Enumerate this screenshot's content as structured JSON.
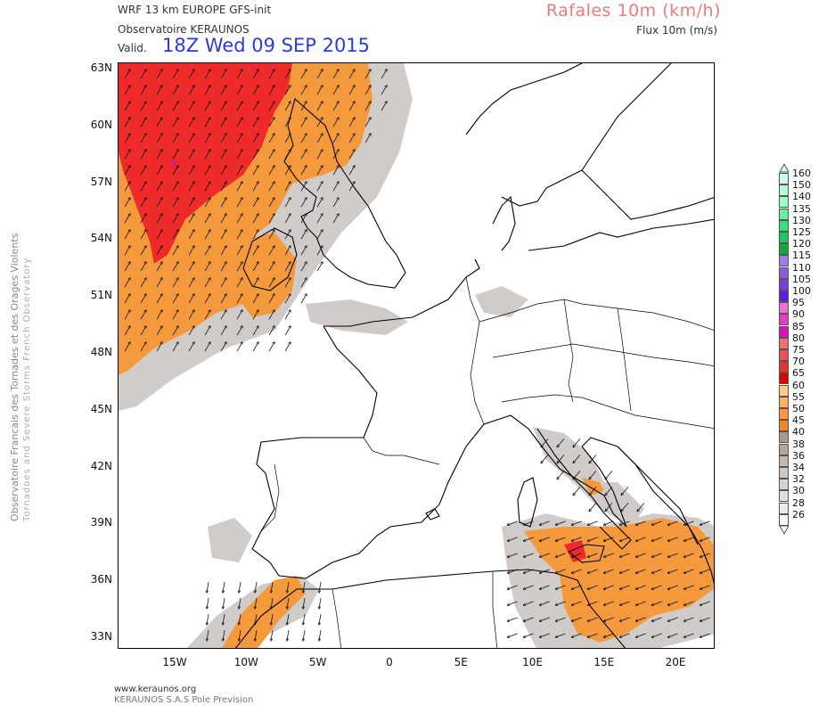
{
  "header": {
    "model": "WRF 13 km EUROPE  GFS-init",
    "org": "Observatoire KERAUNOS",
    "valid_label": "Valid.",
    "valid_time": "18Z Wed 09 SEP 2015",
    "param_title": "Rafales 10m (km/h)",
    "param_sub": "Flux 10m (m/s)"
  },
  "side_text": {
    "main": "Observatoire Francais des Tornades et des Orages Violents",
    "sub": "Tornadoes and Severe Storms French Observatory"
  },
  "footer": {
    "line1": "www.keraunos.org",
    "line2": "KERAUNOS S.A.S Pole Prevision"
  },
  "axes": {
    "lat_labels": [
      "63N",
      "60N",
      "57N",
      "54N",
      "51N",
      "48N",
      "45N",
      "42N",
      "39N",
      "36N",
      "33N"
    ],
    "lon_labels": [
      "15W",
      "10W",
      "5W",
      "0",
      "5E",
      "10E",
      "15E",
      "20E"
    ]
  },
  "legend": {
    "levels": [
      {
        "label": "160",
        "color": "#ccffe6"
      },
      {
        "label": "150",
        "color": "#b3ffd4"
      },
      {
        "label": "140",
        "color": "#99ffc2"
      },
      {
        "label": "135",
        "color": "#66f29a"
      },
      {
        "label": "130",
        "color": "#33e07a"
      },
      {
        "label": "125",
        "color": "#19cc5a"
      },
      {
        "label": "120",
        "color": "#11aa3c"
      },
      {
        "label": "115",
        "color": "#a07af0"
      },
      {
        "label": "110",
        "color": "#8a5ae6"
      },
      {
        "label": "105",
        "color": "#7040e0"
      },
      {
        "label": "100",
        "color": "#5a1ee0"
      },
      {
        "label": "95",
        "color": "#f070d0"
      },
      {
        "label": "90",
        "color": "#e83cc8"
      },
      {
        "label": "85",
        "color": "#e010b8"
      },
      {
        "label": "80",
        "color": "#f07070"
      },
      {
        "label": "75",
        "color": "#ee5050"
      },
      {
        "label": "70",
        "color": "#ea3030"
      },
      {
        "label": "65",
        "color": "#e00000"
      },
      {
        "label": "60",
        "color": "#ffcc88"
      },
      {
        "label": "55",
        "color": "#ffb060"
      },
      {
        "label": "50",
        "color": "#ff9a3a"
      },
      {
        "label": "45",
        "color": "#ff8418"
      },
      {
        "label": "40",
        "color": "#a89a90"
      },
      {
        "label": "38",
        "color": "#b4a89e"
      },
      {
        "label": "36",
        "color": "#c2b8b0"
      },
      {
        "label": "34",
        "color": "#cec6c0"
      },
      {
        "label": "32",
        "color": "#d8d2ce"
      },
      {
        "label": "30",
        "color": "#e2dedb"
      },
      {
        "label": "28",
        "color": "#ecebe9"
      },
      {
        "label": "26",
        "color": "#f6f6f5"
      }
    ]
  },
  "colors": {
    "red_zone": "#ee2a2a",
    "orange_zone": "#f59a3c",
    "grey_zone": "#c8c3bf",
    "valid_time": "#2a3cd8",
    "param_title": "#f07a7a"
  }
}
